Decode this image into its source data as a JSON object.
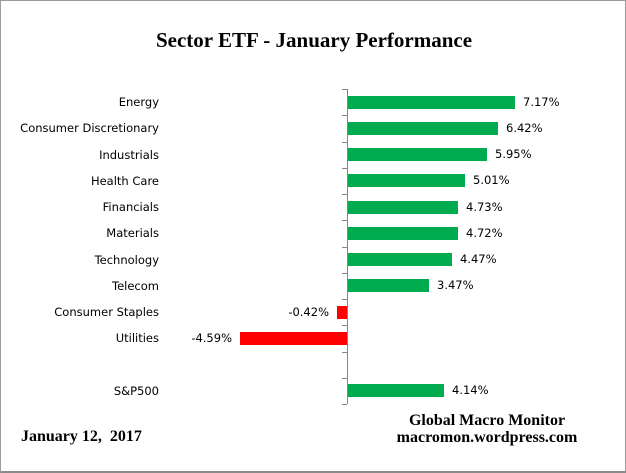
{
  "title": "Sector ETF - January Performance",
  "chart_data": {
    "type": "bar",
    "orientation": "horizontal",
    "title": "Sector ETF - January Performance",
    "categories": [
      "Energy",
      "Consumer Discretionary",
      "Industrials",
      "Health Care",
      "Financials",
      "Materials",
      "Technology",
      "Telecom",
      "Consumer Staples",
      "Utilities",
      "",
      "S&P500"
    ],
    "values": [
      7.17,
      6.42,
      5.95,
      5.01,
      4.73,
      4.72,
      4.47,
      3.47,
      -0.42,
      -4.59,
      null,
      4.14
    ],
    "value_labels": [
      "7.17%",
      "6.42%",
      "5.95%",
      "5.01%",
      "4.73%",
      "4.72%",
      "4.47%",
      "3.47%",
      "-0.42%",
      "-4.59%",
      "",
      "4.14%"
    ],
    "positive_color": "#00AC4F",
    "negative_color": "#FE0000",
    "axis_color": "#858585",
    "xlabel": "",
    "ylabel": "",
    "xlim": [
      -5,
      12
    ],
    "grid": false,
    "legend": false,
    "note": "blank category row separates sector ETFs from S&P500 benchmark"
  },
  "footer": {
    "date": "January 12,  2017",
    "brand_line1": "Global Macro Monitor",
    "brand_line2": "macromon.wordpress.com"
  }
}
